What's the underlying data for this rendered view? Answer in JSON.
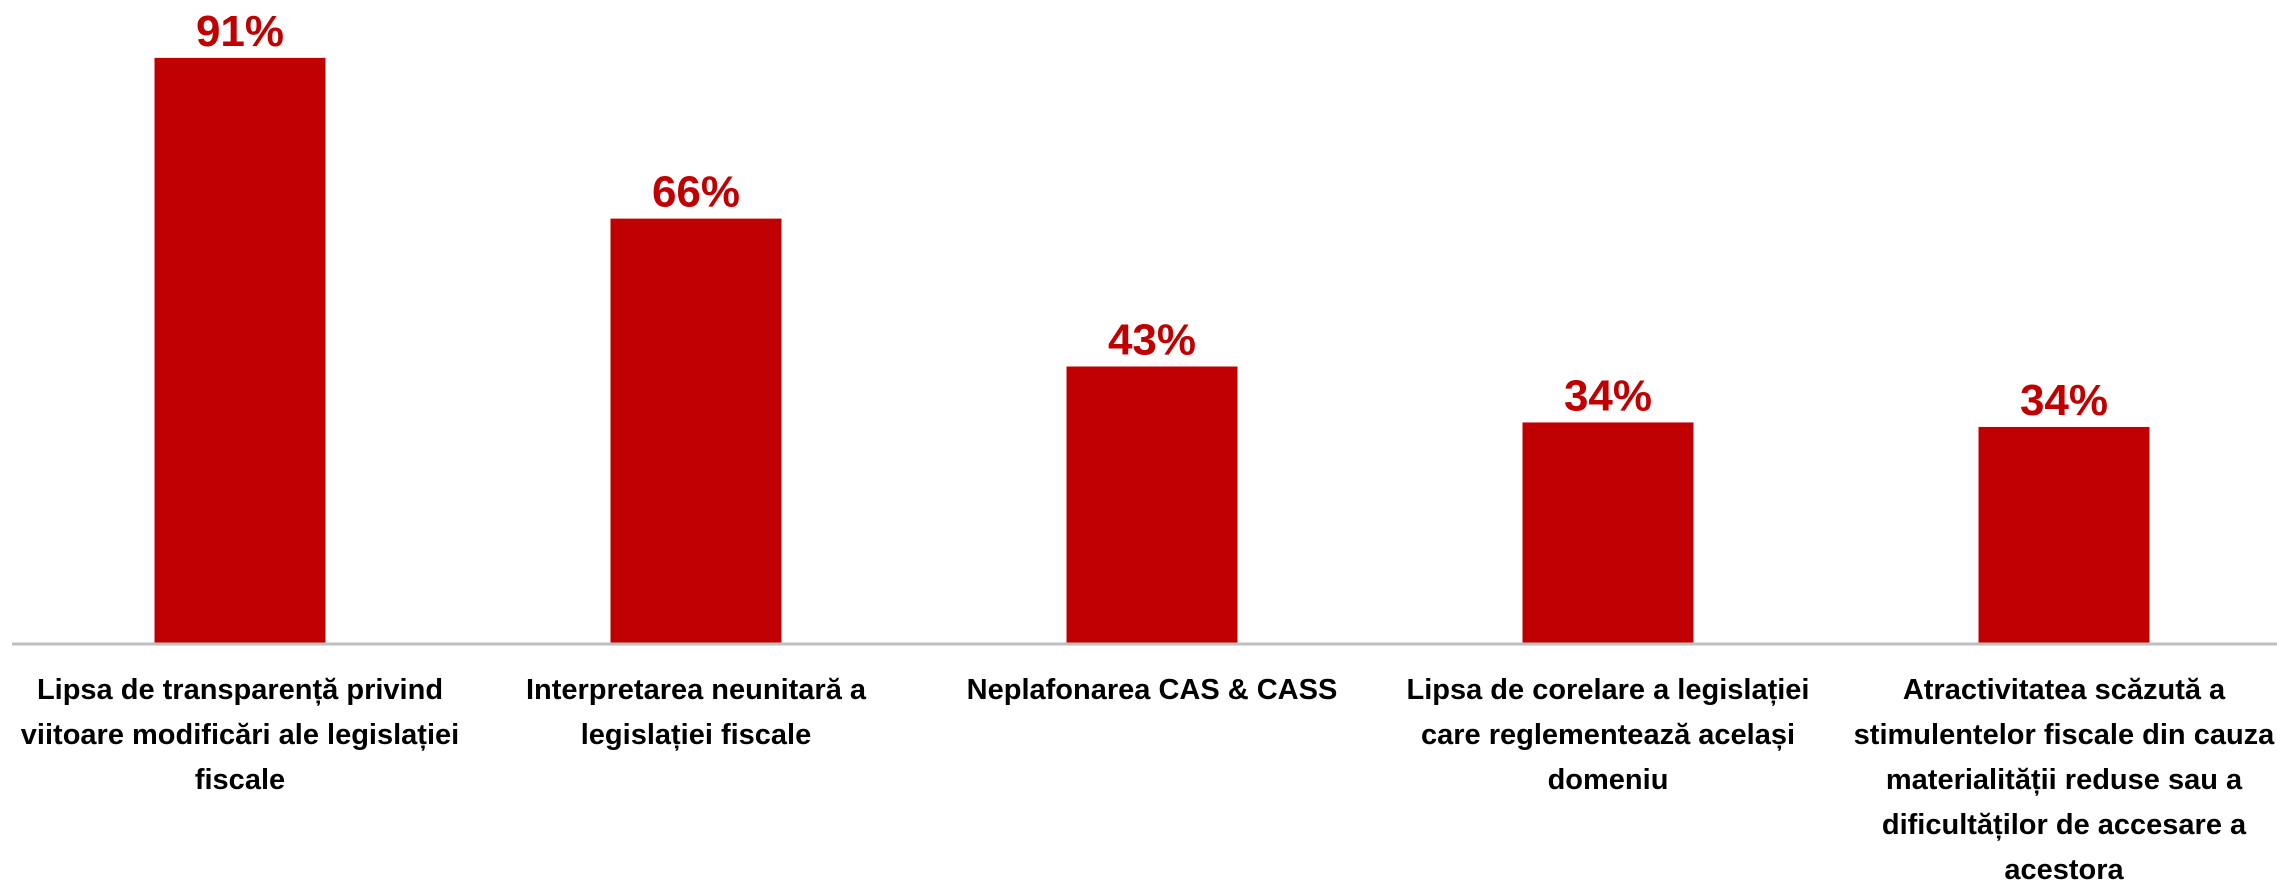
{
  "chart_data": {
    "type": "bar",
    "categories": [
      "Lipsa de transparență privind viitoare modificări ale legislației fiscale",
      "Interpretarea neunitară a legislației fiscale",
      "Neplafonarea CAS & CASS",
      "Lipsa de corelare a legislației care reglementează același domeniu",
      "Atractivitatea scăzută a stimulentelor fiscale din cauza materialității reduse sau a dificultăților de accesare a acestora"
    ],
    "values": [
      91,
      66,
      43,
      34.3,
      33.6
    ],
    "value_labels": [
      "91%",
      "66%",
      "43%",
      "34%",
      "34%"
    ],
    "color": "#c00000"
  }
}
